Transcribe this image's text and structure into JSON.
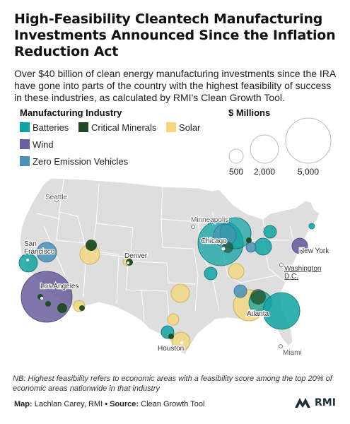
{
  "title": "High-Feasibility Cleantech Manufacturing Investments Announced Since the Inflation Reduction Act",
  "subtitle": "Over $40 billion of clean energy manufacturing investments since the IRA have gone into parts of the country with the highest feasibility of success in these industries, as calculated by RMI's Clean Growth Tool.",
  "legend": {
    "title": "Manufacturing Industry",
    "items": [
      {
        "label": "Batteries",
        "color": "#10a3a3"
      },
      {
        "label": "Critical Minerals",
        "color": "#1c4a22"
      },
      {
        "label": "Solar",
        "color": "#f3d67a"
      },
      {
        "label": "Wind",
        "color": "#6b5e9e"
      },
      {
        "label": "Zero Emission Vehicles",
        "color": "#4a90b8"
      }
    ]
  },
  "size_legend": {
    "title": "$ Millions",
    "items": [
      {
        "label": "500",
        "value": 500
      },
      {
        "label": "2,000",
        "value": 2000
      },
      {
        "label": "5,000",
        "value": 5000
      }
    ]
  },
  "cities": [
    {
      "name": "Seattle"
    },
    {
      "name": "San Francisco",
      "lines": [
        "San",
        "Francisco"
      ]
    },
    {
      "name": "Los Angeles"
    },
    {
      "name": "Denver"
    },
    {
      "name": "Minneapolis"
    },
    {
      "name": "Chicago"
    },
    {
      "name": "New York"
    },
    {
      "name": "Washington D.C.",
      "lines": [
        "Washington",
        "D.C."
      ]
    },
    {
      "name": "Atlanta"
    },
    {
      "name": "Houston"
    },
    {
      "name": "Miami"
    }
  ],
  "footnote": "NB: Highest feasibility refers to economic areas with a feasibility score among the top 20% of economic areas nationwide in that industry",
  "source": {
    "map_label": "Map:",
    "map_value": "Lachlan Carey, RMI",
    "separator": "•",
    "source_label": "Source:",
    "source_value": "Clean Growth Tool"
  },
  "logo": "RMI"
}
